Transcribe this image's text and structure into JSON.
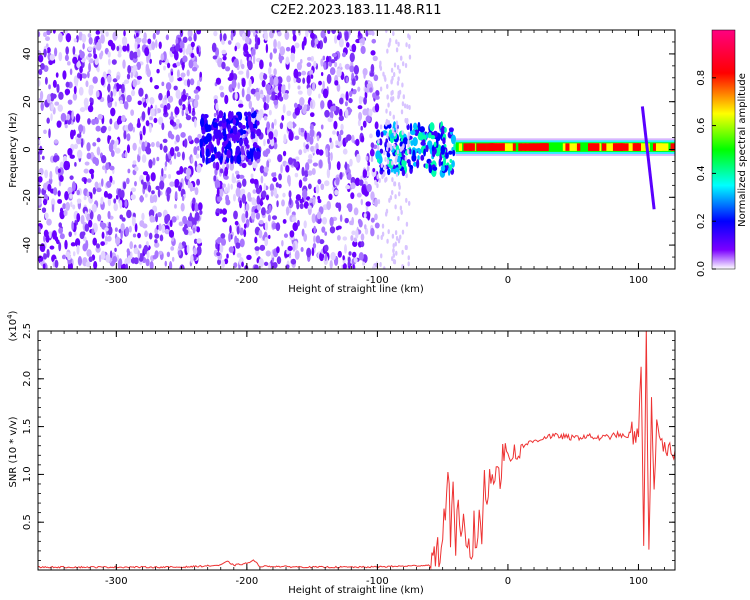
{
  "chart_data": [
    {
      "type": "heatmap",
      "title": "C2E2.2023.183.11.48.R11",
      "xlabel": "Height of straight line (km)",
      "ylabel": "Frequency (Hz)",
      "xlim": [
        -360,
        128
      ],
      "ylim": [
        -50,
        50
      ],
      "x_ticks": [
        -300,
        -200,
        -100,
        0,
        100
      ],
      "x_tick_labels": [
        "-300",
        "-200",
        "-100",
        "0",
        "100"
      ],
      "y_ticks": [
        40,
        20,
        0,
        -20,
        -40
      ],
      "y_tick_labels": [
        "40",
        "20",
        "0",
        "-20",
        "-40"
      ],
      "colorbar": {
        "label": "Normalized spectral amplitude",
        "range": [
          0,
          1
        ],
        "ticks": [
          0.0,
          0.2,
          0.4,
          0.6,
          0.8
        ],
        "tick_labels": [
          "0.0",
          "0.2",
          "0.4",
          "0.6",
          "0.8"
        ],
        "colors": [
          "#ffffff",
          "#7b00ff",
          "#0000ff",
          "#00ffff",
          "#00ff00",
          "#ffff00",
          "#ff0000",
          "#ff0080"
        ]
      },
      "regions": [
        {
          "x_range": [
            -360,
            -235
          ],
          "freq_range": [
            -50,
            50
          ],
          "amplitude": 0.12,
          "description_color": "#7b2ff7"
        },
        {
          "x_range": [
            -225,
            -100
          ],
          "freq_range": [
            -50,
            50
          ],
          "amplitude": 0.12,
          "description_color": "#7b2ff7"
        },
        {
          "x_range": [
            -235,
            -190
          ],
          "freq_range": [
            -5,
            15
          ],
          "amplitude": 0.2,
          "description_color": "#3a00ff"
        },
        {
          "x_range": [
            -100,
            -40
          ],
          "freq_range": [
            -10,
            10
          ],
          "amplitude": 0.3,
          "description_color": "#00c0ff"
        },
        {
          "x_range": [
            -40,
            128
          ],
          "freq_range": [
            -1,
            3
          ],
          "amplitude": 0.9,
          "description_color": "#ff0000"
        },
        {
          "x_range": [
            100,
            112
          ],
          "freq_range": [
            -25,
            18
          ],
          "amplitude": 0.25,
          "description_color": "#5a00ff"
        }
      ]
    },
    {
      "type": "line",
      "xlabel": "Height of straight line (km)",
      "ylabel": "SNR (10 * v/v)",
      "y_scale_note": "(x10",
      "y_scale_exp": "4",
      "y_scale_close": ")",
      "xlim": [
        -360,
        128
      ],
      "ylim": [
        0,
        2.5
      ],
      "x_ticks": [
        -300,
        -200,
        -100,
        0,
        100
      ],
      "x_tick_labels": [
        "-300",
        "-200",
        "-100",
        "0",
        "100"
      ],
      "y_ticks": [
        0.5,
        1.0,
        1.5,
        2.0,
        2.5
      ],
      "y_tick_labels": [
        "0.5",
        "1.0",
        "1.5",
        "2.0",
        "2.5"
      ],
      "line_color": "#ee3333",
      "x": [
        -360,
        -300,
        -250,
        -220,
        -215,
        -210,
        -200,
        -195,
        -190,
        -150,
        -110,
        -80,
        -60,
        -52,
        -48,
        -46,
        -44,
        -42,
        -40,
        -38,
        -36,
        -34,
        -32,
        -30,
        -28,
        -26,
        -24,
        -22,
        -20,
        -18,
        -16,
        -14,
        -12,
        -10,
        -8,
        -6,
        -4,
        -2,
        0,
        5,
        10,
        15,
        20,
        25,
        30,
        40,
        50,
        60,
        70,
        80,
        85,
        90,
        95,
        98,
        100,
        102,
        104,
        106,
        108,
        110,
        112,
        114,
        116,
        120,
        125,
        128
      ],
      "y": [
        0.03,
        0.03,
        0.03,
        0.05,
        0.09,
        0.05,
        0.07,
        0.1,
        0.04,
        0.03,
        0.03,
        0.04,
        0.05,
        0.2,
        0.6,
        1.1,
        0.4,
        0.85,
        0.3,
        0.6,
        0.2,
        0.5,
        0.15,
        0.35,
        0.1,
        0.45,
        0.25,
        0.6,
        0.4,
        0.9,
        0.7,
        1.0,
        0.9,
        1.1,
        1.2,
        0.95,
        1.25,
        1.15,
        1.2,
        1.25,
        1.3,
        1.32,
        1.35,
        1.37,
        1.4,
        1.4,
        1.38,
        1.4,
        1.38,
        1.4,
        1.42,
        1.38,
        1.45,
        1.3,
        1.5,
        2.2,
        0.2,
        2.5,
        0.1,
        1.8,
        0.9,
        1.5,
        1.3,
        1.25,
        1.2,
        1.25
      ]
    }
  ]
}
